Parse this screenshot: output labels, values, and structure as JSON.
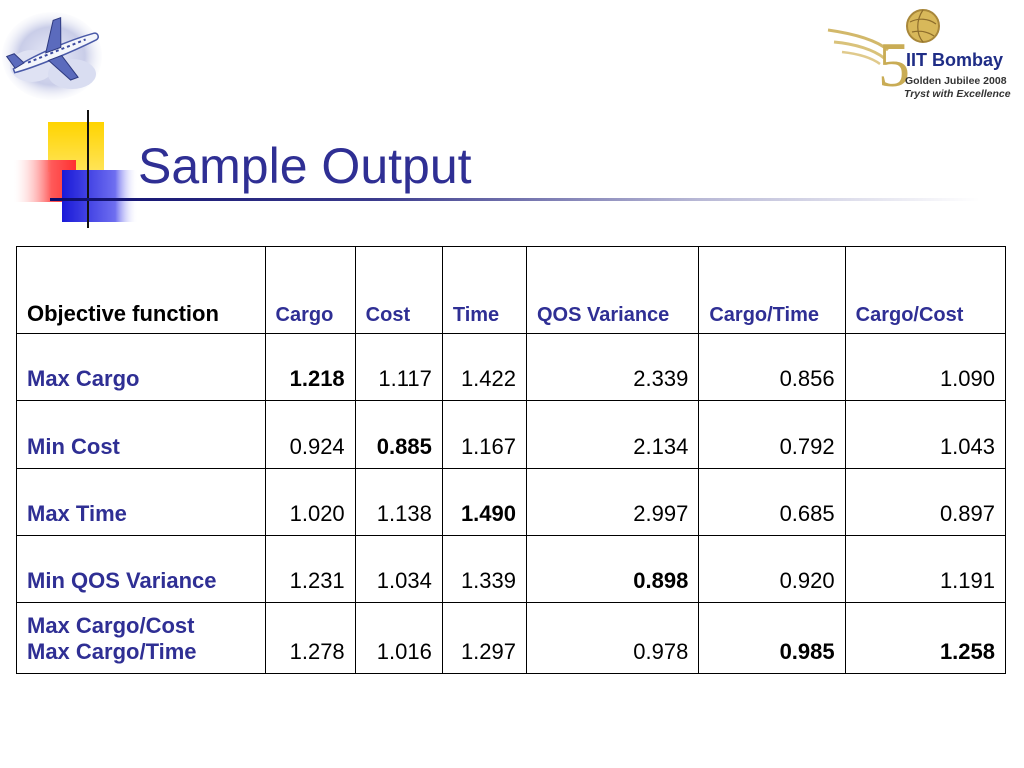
{
  "slide": {
    "title": "Sample Output"
  },
  "logo": {
    "line1": "IIT Bombay",
    "line2": "Golden Jubilee 2008",
    "line3": "Tryst with Excellence",
    "emblem_number": "50"
  },
  "colors": {
    "title_blue": "#2f2f94",
    "row_label_blue": "#2f2f94",
    "border": "#000000"
  },
  "table": {
    "headers": [
      "Objective function",
      "Cargo",
      "Cost",
      "Time",
      "QOS Variance",
      "Cargo/Time",
      "Cargo/Cost"
    ],
    "rows": [
      {
        "label": "Max Cargo",
        "values": [
          "1.218",
          "1.117",
          "1.422",
          "2.339",
          "0.856",
          "1.090"
        ]
      },
      {
        "label": "Min Cost",
        "values": [
          "0.924",
          "0.885",
          "1.167",
          "2.134",
          "0.792",
          "1.043"
        ]
      },
      {
        "label": "Max Time",
        "values": [
          "1.020",
          "1.138",
          "1.490",
          "2.997",
          "0.685",
          "0.897"
        ]
      },
      {
        "label": "Min QOS Variance",
        "values": [
          "1.231",
          "1.034",
          "1.339",
          "0.898",
          "0.920",
          "1.191"
        ]
      },
      {
        "label": "Max Cargo/Cost",
        "label2": "Max Cargo/Time",
        "values": [
          "1.278",
          "1.016",
          "1.297",
          "0.978",
          "0.985",
          "1.258"
        ]
      }
    ]
  }
}
